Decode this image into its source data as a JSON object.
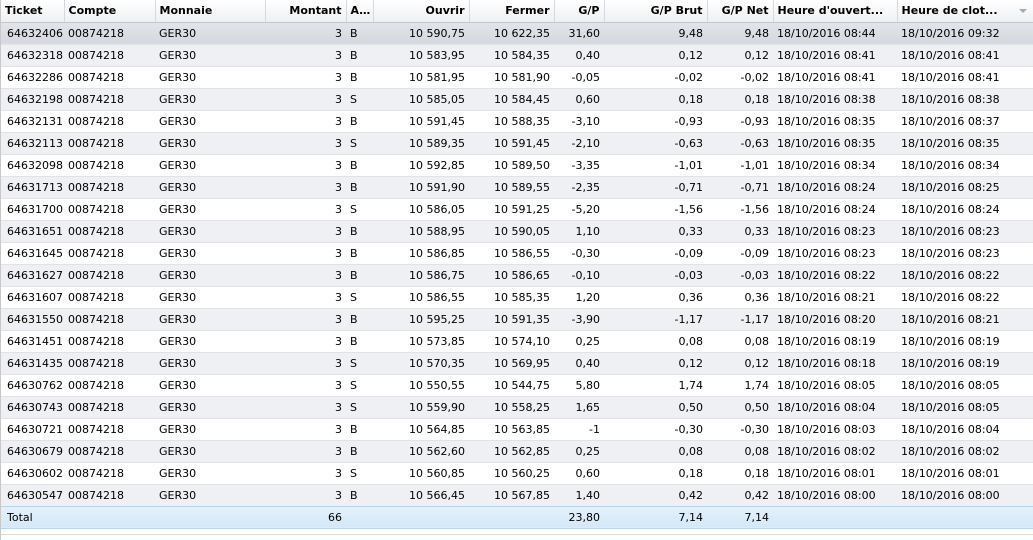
{
  "columns": [
    {
      "key": "ticket",
      "label": "Ticket"
    },
    {
      "key": "compte",
      "label": "Compte"
    },
    {
      "key": "monnaie",
      "label": "Monnaie"
    },
    {
      "key": "montant",
      "label": "Montant"
    },
    {
      "key": "action",
      "label": "A..."
    },
    {
      "key": "ouvrir",
      "label": "Ouvrir"
    },
    {
      "key": "fermer",
      "label": "Fermer"
    },
    {
      "key": "gp",
      "label": "G/P"
    },
    {
      "key": "gp_brut",
      "label": "G/P Brut"
    },
    {
      "key": "gp_net",
      "label": "G/P Net"
    },
    {
      "key": "heure_ouverture",
      "label": "Heure d'ouvert..."
    },
    {
      "key": "heure_cloture",
      "label": "Heure de clot..."
    }
  ],
  "rows": [
    [
      "64632406",
      "00874218",
      "GER30",
      "3",
      "B",
      "10 590,75",
      "10 622,35",
      "31,60",
      "9,48",
      "9,48",
      "18/10/2016 08:44",
      "18/10/2016 09:32"
    ],
    [
      "64632318",
      "00874218",
      "GER30",
      "3",
      "B",
      "10 583,95",
      "10 584,35",
      "0,40",
      "0,12",
      "0,12",
      "18/10/2016 08:41",
      "18/10/2016 08:41"
    ],
    [
      "64632286",
      "00874218",
      "GER30",
      "3",
      "B",
      "10 581,95",
      "10 581,90",
      "-0,05",
      "-0,02",
      "-0,02",
      "18/10/2016 08:41",
      "18/10/2016 08:41"
    ],
    [
      "64632198",
      "00874218",
      "GER30",
      "3",
      "S",
      "10 585,05",
      "10 584,45",
      "0,60",
      "0,18",
      "0,18",
      "18/10/2016 08:38",
      "18/10/2016 08:38"
    ],
    [
      "64632131",
      "00874218",
      "GER30",
      "3",
      "B",
      "10 591,45",
      "10 588,35",
      "-3,10",
      "-0,93",
      "-0,93",
      "18/10/2016 08:35",
      "18/10/2016 08:37"
    ],
    [
      "64632113",
      "00874218",
      "GER30",
      "3",
      "S",
      "10 589,35",
      "10 591,45",
      "-2,10",
      "-0,63",
      "-0,63",
      "18/10/2016 08:35",
      "18/10/2016 08:35"
    ],
    [
      "64632098",
      "00874218",
      "GER30",
      "3",
      "B",
      "10 592,85",
      "10 589,50",
      "-3,35",
      "-1,01",
      "-1,01",
      "18/10/2016 08:34",
      "18/10/2016 08:34"
    ],
    [
      "64631713",
      "00874218",
      "GER30",
      "3",
      "B",
      "10 591,90",
      "10 589,55",
      "-2,35",
      "-0,71",
      "-0,71",
      "18/10/2016 08:24",
      "18/10/2016 08:25"
    ],
    [
      "64631700",
      "00874218",
      "GER30",
      "3",
      "S",
      "10 586,05",
      "10 591,25",
      "-5,20",
      "-1,56",
      "-1,56",
      "18/10/2016 08:24",
      "18/10/2016 08:24"
    ],
    [
      "64631651",
      "00874218",
      "GER30",
      "3",
      "B",
      "10 588,95",
      "10 590,05",
      "1,10",
      "0,33",
      "0,33",
      "18/10/2016 08:23",
      "18/10/2016 08:23"
    ],
    [
      "64631645",
      "00874218",
      "GER30",
      "3",
      "B",
      "10 586,85",
      "10 586,55",
      "-0,30",
      "-0,09",
      "-0,09",
      "18/10/2016 08:23",
      "18/10/2016 08:23"
    ],
    [
      "64631627",
      "00874218",
      "GER30",
      "3",
      "B",
      "10 586,75",
      "10 586,65",
      "-0,10",
      "-0,03",
      "-0,03",
      "18/10/2016 08:22",
      "18/10/2016 08:22"
    ],
    [
      "64631607",
      "00874218",
      "GER30",
      "3",
      "S",
      "10 586,55",
      "10 585,35",
      "1,20",
      "0,36",
      "0,36",
      "18/10/2016 08:21",
      "18/10/2016 08:22"
    ],
    [
      "64631550",
      "00874218",
      "GER30",
      "3",
      "B",
      "10 595,25",
      "10 591,35",
      "-3,90",
      "-1,17",
      "-1,17",
      "18/10/2016 08:20",
      "18/10/2016 08:21"
    ],
    [
      "64631451",
      "00874218",
      "GER30",
      "3",
      "B",
      "10 573,85",
      "10 574,10",
      "0,25",
      "0,08",
      "0,08",
      "18/10/2016 08:19",
      "18/10/2016 08:19"
    ],
    [
      "64631435",
      "00874218",
      "GER30",
      "3",
      "S",
      "10 570,35",
      "10 569,95",
      "0,40",
      "0,12",
      "0,12",
      "18/10/2016 08:18",
      "18/10/2016 08:19"
    ],
    [
      "64630762",
      "00874218",
      "GER30",
      "3",
      "S",
      "10 550,55",
      "10 544,75",
      "5,80",
      "1,74",
      "1,74",
      "18/10/2016 08:05",
      "18/10/2016 08:05"
    ],
    [
      "64630743",
      "00874218",
      "GER30",
      "3",
      "S",
      "10 559,90",
      "10 558,25",
      "1,65",
      "0,50",
      "0,50",
      "18/10/2016 08:04",
      "18/10/2016 08:05"
    ],
    [
      "64630721",
      "00874218",
      "GER30",
      "3",
      "B",
      "10 564,85",
      "10 563,85",
      "-1",
      "-0,30",
      "-0,30",
      "18/10/2016 08:03",
      "18/10/2016 08:04"
    ],
    [
      "64630679",
      "00874218",
      "GER30",
      "3",
      "B",
      "10 562,60",
      "10 562,85",
      "0,25",
      "0,08",
      "0,08",
      "18/10/2016 08:02",
      "18/10/2016 08:02"
    ],
    [
      "64630602",
      "00874218",
      "GER30",
      "3",
      "S",
      "10 560,85",
      "10 560,25",
      "0,60",
      "0,18",
      "0,18",
      "18/10/2016 08:01",
      "18/10/2016 08:01"
    ],
    [
      "64630547",
      "00874218",
      "GER30",
      "3",
      "B",
      "10 566,45",
      "10 567,85",
      "1,40",
      "0,42",
      "0,42",
      "18/10/2016 08:00",
      "18/10/2016 08:00"
    ]
  ],
  "totals": {
    "label": "Total",
    "montant": "66",
    "gp": "23,80",
    "gp_brut": "7,14",
    "gp_net": "7,14"
  },
  "sort_indicator_icon": "sort-descending-icon"
}
